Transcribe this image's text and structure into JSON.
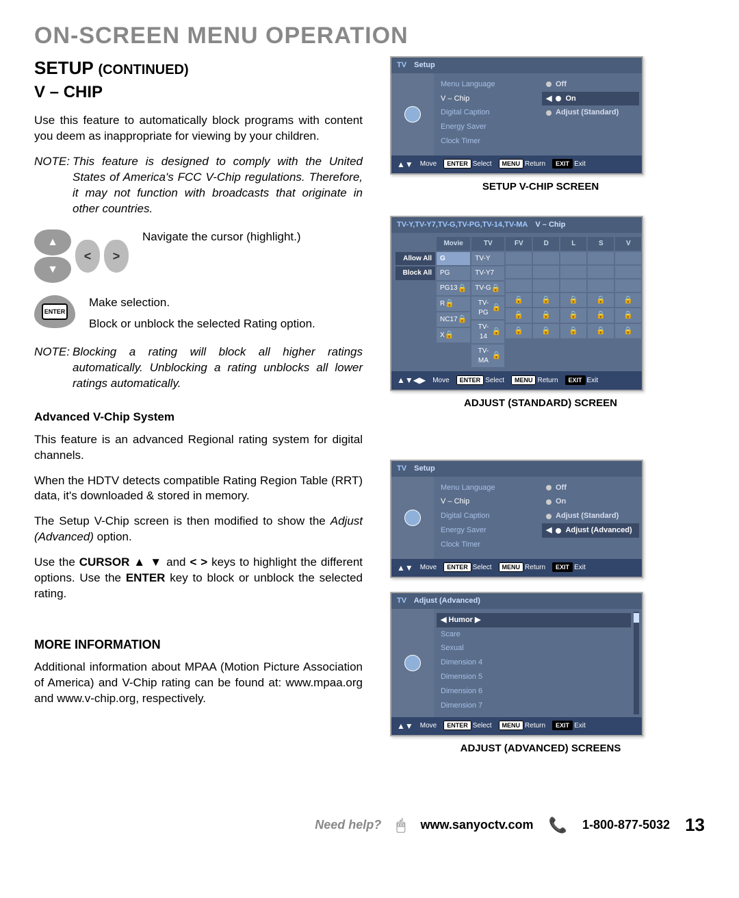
{
  "page": {
    "title": "ON-SCREEN MENU OPERATION",
    "setup_continued": "SETUP",
    "continued_suffix": "(CONTINUED)",
    "vchip_heading": "V – CHIP",
    "intro": "Use this feature to automatically block programs with content you deem as inappropriate for viewing by your children.",
    "note1_label": "NOTE:",
    "note1": "This feature is designed to comply with the United States of America's FCC V-Chip regulations. Therefore, it may not function with broadcasts that originate in other countries.",
    "nav_text": "Navigate the cursor (highlight.)",
    "enter_text1": "Make selection.",
    "enter_text2": "Block or unblock the selected Rating option.",
    "note2_label": "NOTE:",
    "note2": "Blocking a rating will block all higher ratings automatically. Unblocking a rating unblocks all lower ratings automatically.",
    "adv_head": "Advanced V-Chip System",
    "adv_p1": "This feature is an advanced Regional rating system for digital channels.",
    "adv_p2": "When the HDTV detects compatible Rating Region Table (RRT) data, it's downloaded & stored in memory.",
    "adv_p3_a": "The Setup V-Chip screen is then modified to show the ",
    "adv_p3_b": "Adjust (Advanced)",
    "adv_p3_c": " option.",
    "adv_p4_a": "Use the ",
    "adv_p4_b": "CURSOR ▲ ▼",
    "adv_p4_c": " and ",
    "adv_p4_d": "< >",
    "adv_p4_e": " keys to highlight the different options. Use the ",
    "adv_p4_f": "ENTER",
    "adv_p4_g": " key to block or unblock the selected rating.",
    "more_head": "MORE INFORMATION",
    "more_body": "Additional information about MPAA (Motion Picture Association of America) and V-Chip rating can be found at: www.mpaa.org and www.v-chip.org, respectively."
  },
  "osd_setup": {
    "tv": "TV",
    "title": "Setup",
    "items": [
      "Menu Language",
      "V – Chip",
      "Digital Caption",
      "Energy Saver",
      "Clock Timer"
    ],
    "options": [
      "Off",
      "On",
      "Adjust (Standard)"
    ],
    "selected_option_index": 1,
    "highlighted_item_index": 1,
    "footer": {
      "move": "Move",
      "enter": "ENTER",
      "select": "Select",
      "menu": "MENU",
      "return": "Return",
      "exit_btn": "EXIT",
      "exit": "Exit"
    },
    "caption": "SETUP V-CHIP SCREEN"
  },
  "osd_adjust_std": {
    "tv": [
      "TV-Y",
      "TV-Y7",
      "TV-G",
      "TV-PG",
      "TV-14",
      "TV-MA"
    ],
    "title": "V – Chip",
    "side": [
      "Allow All",
      "Block All"
    ],
    "movie_head": "Movie",
    "tv_head": "TV",
    "sub_heads": [
      "FV",
      "D",
      "L",
      "S",
      "V"
    ],
    "movie": [
      "G",
      "PG",
      "PG13",
      "R",
      "NC17",
      "X"
    ],
    "footer": {
      "move": "Move",
      "enter": "ENTER",
      "select": "Select",
      "menu": "MENU",
      "return": "Return",
      "exit_btn": "EXIT",
      "exit": "Exit"
    },
    "caption": "ADJUST (STANDARD) SCREEN"
  },
  "osd_setup2": {
    "tv": "TV",
    "title": "Setup",
    "items": [
      "Menu Language",
      "V – Chip",
      "Digital Caption",
      "Energy Saver",
      "Clock Timer"
    ],
    "options": [
      "Off",
      "On",
      "Adjust (Standard)",
      "Adjust (Advanced)"
    ],
    "selected_option_index": 3,
    "highlighted_item_index": 1
  },
  "osd_adv": {
    "tv": "TV",
    "title": "Adjust (Advanced)",
    "items": [
      "Humor",
      "Scare",
      "Sexual",
      "Dimension 4",
      "Dimension 5",
      "Dimension 6",
      "Dimension 7"
    ],
    "selected_index": 0,
    "footer": {
      "move": "Move",
      "enter": "ENTER",
      "select": "Select",
      "menu": "MENU",
      "return": "Return",
      "exit_btn": "EXIT",
      "exit": "Exit"
    },
    "caption": "ADJUST (ADVANCED) SCREENS"
  },
  "help": {
    "need": "Need help?",
    "url": "www.sanyoctv.com",
    "phone": "1-800-877-5032",
    "page": "13"
  },
  "colors": {
    "osd_bg": "#5a6d8a",
    "osd_header": "#4a5d7a",
    "osd_footer": "#32456a",
    "page_title": "#888888"
  }
}
